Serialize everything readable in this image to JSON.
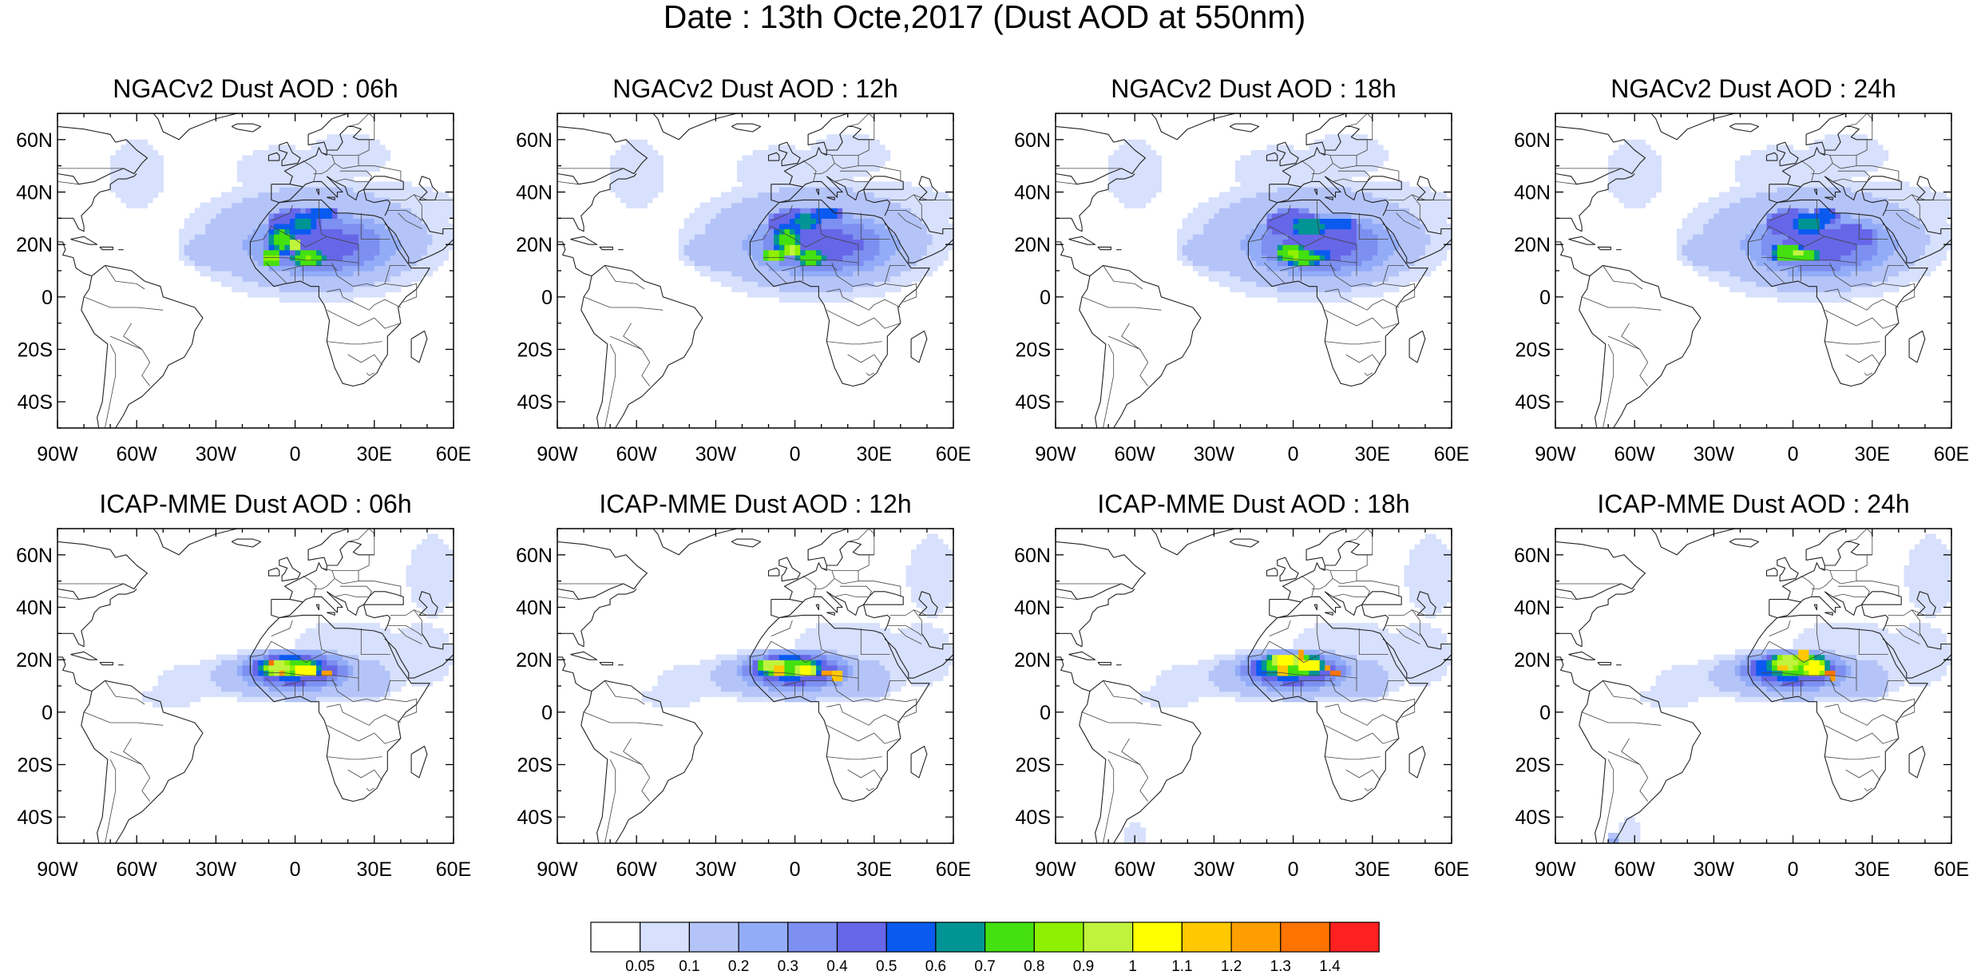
{
  "title": "Date : 13th Octe,2017 (Dust AOD at 550nm)",
  "lat_ticks": [
    "60N",
    "40N",
    "20N",
    "0",
    "20S",
    "40S"
  ],
  "lon_ticks": [
    "90W",
    "60W",
    "30W",
    "0",
    "30E",
    "60E"
  ],
  "panels": [
    {
      "title": "NGACv2 Dust AOD : 06h"
    },
    {
      "title": "NGACv2 Dust AOD : 12h"
    },
    {
      "title": "NGACv2 Dust AOD : 18h"
    },
    {
      "title": "NGACv2 Dust AOD : 24h"
    },
    {
      "title": "ICAP-MME Dust AOD : 06h"
    },
    {
      "title": "ICAP-MME Dust AOD : 12h"
    },
    {
      "title": "ICAP-MME Dust AOD : 18h"
    },
    {
      "title": "ICAP-MME Dust AOD : 24h"
    }
  ],
  "colorbar": {
    "labels": [
      "0.05",
      "0.1",
      "0.2",
      "0.3",
      "0.4",
      "0.5",
      "0.6",
      "0.7",
      "0.8",
      "0.9",
      "1",
      "1.1",
      "1.2",
      "1.3",
      "1.4"
    ],
    "colors": [
      "#ffffff",
      "#d7e0fc",
      "#b4c4f8",
      "#93acf8",
      "#7d8ff0",
      "#6666e8",
      "#0a5af0",
      "#009494",
      "#44e010",
      "#8ef000",
      "#c0f43c",
      "#ffff00",
      "#ffc800",
      "#ff9e00",
      "#ff7300",
      "#ff2020"
    ]
  }
}
